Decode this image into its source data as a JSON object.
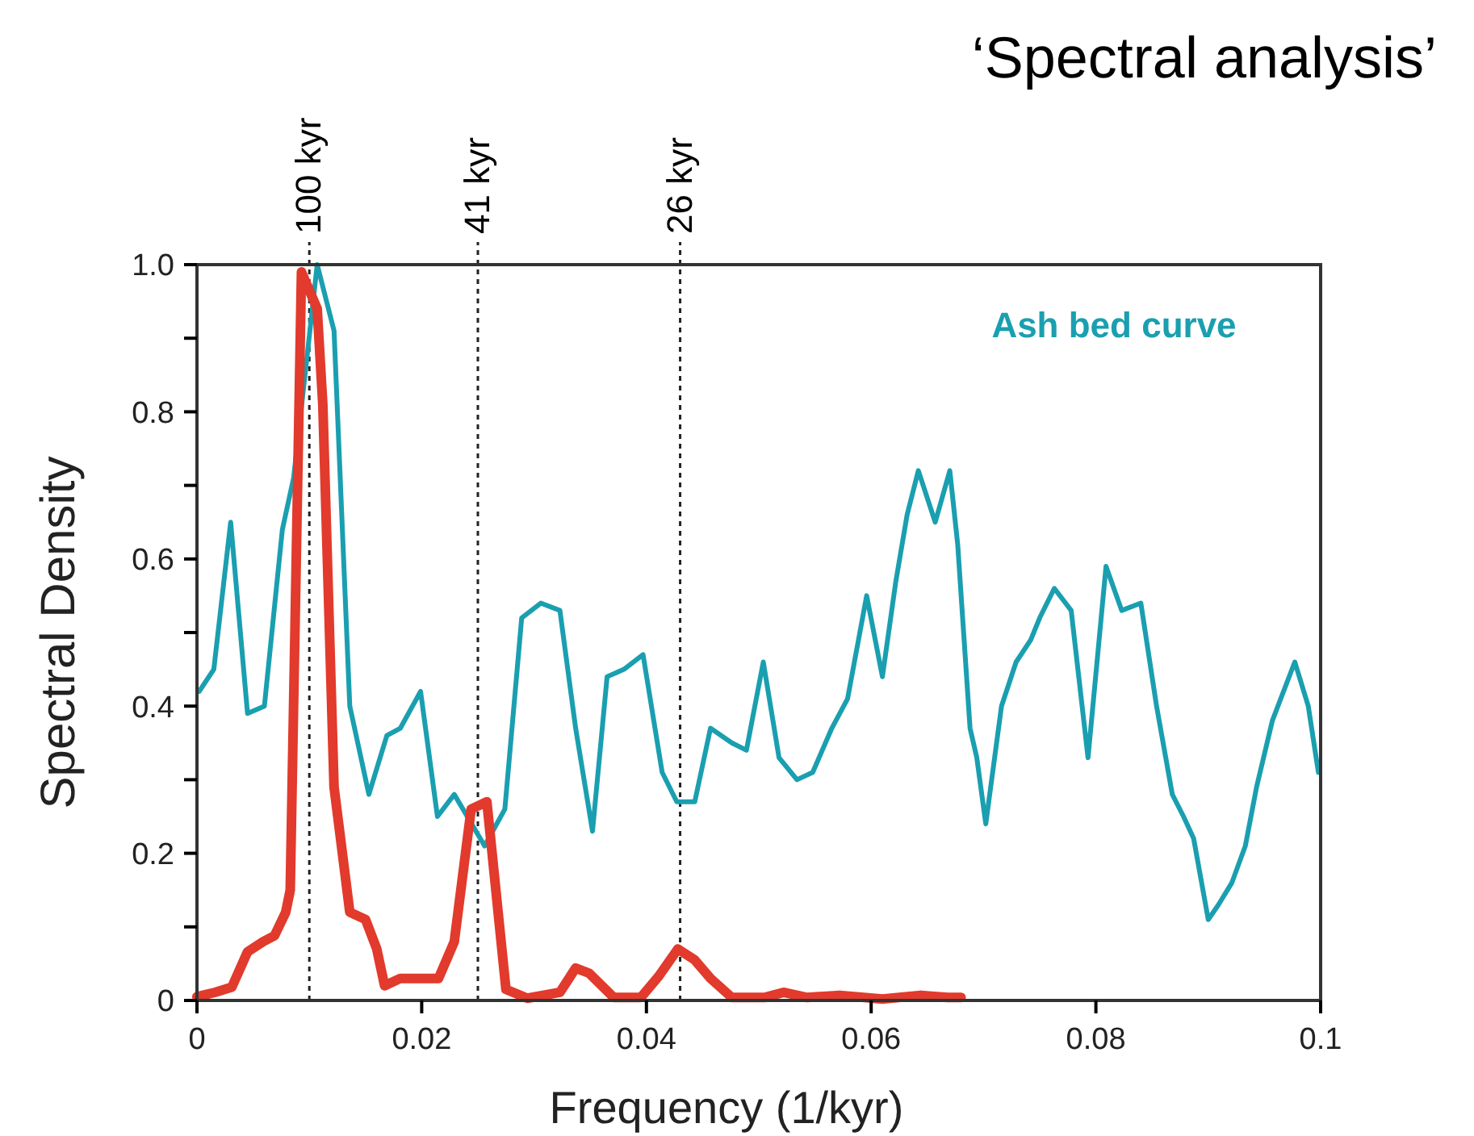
{
  "chart_data": {
    "type": "line",
    "title": "‘Spectral analysis’",
    "xlabel": "Frequency (1/kyr)",
    "ylabel": "Spectral Density",
    "xlim": [
      0,
      0.1
    ],
    "xticks": [
      0,
      0.02,
      0.04,
      0.06,
      0.08,
      0.1
    ],
    "ylim": [
      0,
      1
    ],
    "yticks": [
      0,
      {
        "value": 0.1,
        "label": null
      },
      0.2,
      {
        "value": 0.3,
        "label": null
      },
      0.4,
      {
        "value": 0.5,
        "label": null
      },
      0.6,
      {
        "value": 0.7,
        "label": null
      },
      0.8,
      {
        "value": 0.9,
        "label": null
      },
      {
        "value": 1,
        "label": "1.0"
      }
    ],
    "grid": false,
    "legend": false,
    "marker": "none",
    "line_style": "solid",
    "ref_lines": [
      {
        "axis": "x",
        "value": 0.01,
        "label": "100 kyr",
        "color": "#222222",
        "line_style": "dotted"
      },
      {
        "axis": "x",
        "value": 0.025,
        "label": "41 kyr",
        "color": "#222222",
        "line_style": "dotted"
      },
      {
        "axis": "x",
        "value": 0.043,
        "label": "26 kyr",
        "color": "#222222",
        "line_style": "dotted"
      }
    ],
    "series": [
      {
        "name": "Ash bed curve",
        "color": "#1a9fb0",
        "x": [
          0.0002,
          0.0015,
          0.003,
          0.0045,
          0.006,
          0.0076,
          0.0086,
          0.0107,
          0.0122,
          0.0136,
          0.0153,
          0.0169,
          0.0181,
          0.0199,
          0.0214,
          0.0229,
          0.0256,
          0.0274,
          0.0289,
          0.0306,
          0.0323,
          0.0337,
          0.0352,
          0.0365,
          0.038,
          0.0397,
          0.0414,
          0.0427,
          0.0443,
          0.0457,
          0.0476,
          0.0489,
          0.0504,
          0.0518,
          0.0534,
          0.0548,
          0.0565,
          0.0579,
          0.0596,
          0.061,
          0.0622,
          0.0632,
          0.0642,
          0.0657,
          0.067,
          0.0677,
          0.0688,
          0.0694,
          0.0702,
          0.0716,
          0.0729,
          0.0742,
          0.075,
          0.0763,
          0.0778,
          0.0793,
          0.0809,
          0.0823,
          0.084,
          0.0854,
          0.0868,
          0.0878,
          0.0887,
          0.09,
          0.0909,
          0.0921,
          0.0933,
          0.0943,
          0.0957,
          0.0977,
          0.0989,
          0.0998
        ],
        "values": [
          0.42,
          0.45,
          0.65,
          0.39,
          0.4,
          0.64,
          0.71,
          1.0,
          0.91,
          0.4,
          0.28,
          0.36,
          0.37,
          0.42,
          0.25,
          0.28,
          0.21,
          0.26,
          0.52,
          0.54,
          0.53,
          0.37,
          0.23,
          0.44,
          0.45,
          0.47,
          0.31,
          0.27,
          0.27,
          0.37,
          0.35,
          0.34,
          0.46,
          0.33,
          0.3,
          0.31,
          0.37,
          0.41,
          0.55,
          0.44,
          0.57,
          0.66,
          0.72,
          0.65,
          0.72,
          0.62,
          0.37,
          0.33,
          0.24,
          0.4,
          0.46,
          0.49,
          0.52,
          0.56,
          0.53,
          0.33,
          0.59,
          0.53,
          0.54,
          0.4,
          0.28,
          0.25,
          0.22,
          0.11,
          0.13,
          0.16,
          0.21,
          0.29,
          0.38,
          0.46,
          0.4,
          0.31
        ]
      },
      {
        "color": "#e23a2c",
        "x": [
          0,
          0.0016,
          0.0031,
          0.0045,
          0.0059,
          0.0069,
          0.0079,
          0.0083,
          0.0093,
          0.0107,
          0.0112,
          0.0122,
          0.0136,
          0.015,
          0.016,
          0.0167,
          0.0181,
          0.0215,
          0.0229,
          0.0244,
          0.0258,
          0.0275,
          0.0294,
          0.0323,
          0.0337,
          0.0349,
          0.0371,
          0.0395,
          0.0411,
          0.0428,
          0.0443,
          0.0457,
          0.0476,
          0.0505,
          0.0522,
          0.0543,
          0.0572,
          0.061,
          0.0644,
          0.0668,
          0.068
        ],
        "values": [
          0.005,
          0.011,
          0.018,
          0.066,
          0.08,
          0.088,
          0.12,
          0.15,
          0.99,
          0.94,
          0.81,
          0.29,
          0.12,
          0.11,
          0.07,
          0.02,
          0.03,
          0.03,
          0.08,
          0.26,
          0.27,
          0.015,
          0.003,
          0.011,
          0.044,
          0.037,
          0.004,
          0.004,
          0.033,
          0.07,
          0.055,
          0.03,
          0.004,
          0.004,
          0.011,
          0.004,
          0.007,
          0.002,
          0.007,
          0.004,
          0.004
        ]
      }
    ]
  }
}
